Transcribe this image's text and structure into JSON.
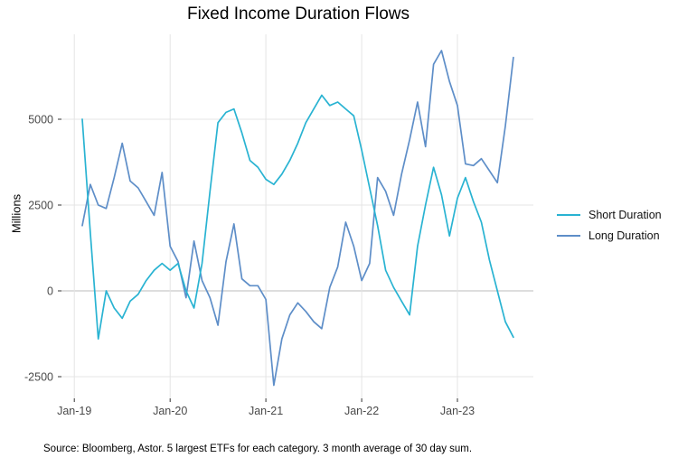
{
  "title": "Fixed Income Duration Flows",
  "source_note": "Source: Bloomberg, Astor. 5 largest ETFs for each category. 3 month average of 30 day sum.",
  "legend": {
    "items": [
      {
        "label": "Short Duration",
        "color": "#29B3D2"
      },
      {
        "label": "Long Duration",
        "color": "#5E8EC8"
      }
    ]
  },
  "colors": {
    "grid": "#E4E4E4",
    "zero_line": "#C9C9C9",
    "tick": "#333333",
    "axis_text": "#4A4A4A",
    "short_duration": "#29B3D2",
    "long_duration": "#5E8EC8"
  },
  "chart_data": {
    "type": "line",
    "title": "Fixed Income Duration Flows",
    "xlabel": "",
    "ylabel": "Millions",
    "units": "Millions",
    "grid": true,
    "legend_position": "right",
    "ylim": [
      -3150,
      7500
    ],
    "y_ticks": [
      -2500,
      0,
      2500,
      5000
    ],
    "y_tick_labels": [
      "-2500",
      "0",
      "2500",
      "5000"
    ],
    "x_tick_labels": [
      "Jan-19",
      "Jan-20",
      "Jan-21",
      "Jan-22",
      "Jan-23"
    ],
    "x": [
      "Feb-19",
      "Mar-19",
      "Apr-19",
      "May-19",
      "Jun-19",
      "Jul-19",
      "Aug-19",
      "Sep-19",
      "Oct-19",
      "Nov-19",
      "Dec-19",
      "Jan-20",
      "Feb-20",
      "Mar-20",
      "Apr-20",
      "May-20",
      "Jun-20",
      "Jul-20",
      "Aug-20",
      "Sep-20",
      "Oct-20",
      "Nov-20",
      "Dec-20",
      "Jan-21",
      "Feb-21",
      "Mar-21",
      "Apr-21",
      "May-21",
      "Jun-21",
      "Jul-21",
      "Aug-21",
      "Sep-21",
      "Oct-21",
      "Nov-21",
      "Dec-21",
      "Jan-22",
      "Feb-22",
      "Mar-22",
      "Apr-22",
      "May-22",
      "Jun-22",
      "Jul-22",
      "Aug-22",
      "Sep-22",
      "Oct-22",
      "Nov-22",
      "Dec-22",
      "Jan-23",
      "Feb-23",
      "Mar-23",
      "Apr-23",
      "May-23",
      "Jun-23",
      "Jul-23",
      "Aug-23"
    ],
    "series": [
      {
        "name": "Short Duration",
        "color": "#29B3D2",
        "values": [
          5000,
          1700,
          -1400,
          0,
          -500,
          -800,
          -300,
          -100,
          300,
          600,
          800,
          600,
          800,
          0,
          -500,
          800,
          2900,
          4900,
          5200,
          5300,
          4600,
          3800,
          3600,
          3250,
          3100,
          3400,
          3800,
          4300,
          4900,
          5300,
          5700,
          5400,
          5500,
          5300,
          5100,
          4100,
          3000,
          1900,
          600,
          100,
          -300,
          -700,
          1300,
          2500,
          3600,
          2800,
          1600,
          2700,
          3300,
          2600,
          2000,
          900,
          0,
          -900,
          -1350
        ]
      },
      {
        "name": "Long Duration",
        "color": "#5E8EC8",
        "values": [
          1900,
          3100,
          2500,
          2400,
          3300,
          4300,
          3200,
          3000,
          2600,
          2200,
          3450,
          1300,
          850,
          -200,
          1450,
          300,
          -200,
          -1000,
          850,
          1950,
          350,
          150,
          150,
          -250,
          -2750,
          -1400,
          -700,
          -350,
          -600,
          -900,
          -1100,
          100,
          700,
          2000,
          1300,
          300,
          800,
          3300,
          2900,
          2200,
          3400,
          4400,
          5500,
          4200,
          6600,
          7000,
          6100,
          5400,
          3700,
          3650,
          3850,
          3500,
          3150,
          4800,
          6800
        ]
      }
    ]
  }
}
